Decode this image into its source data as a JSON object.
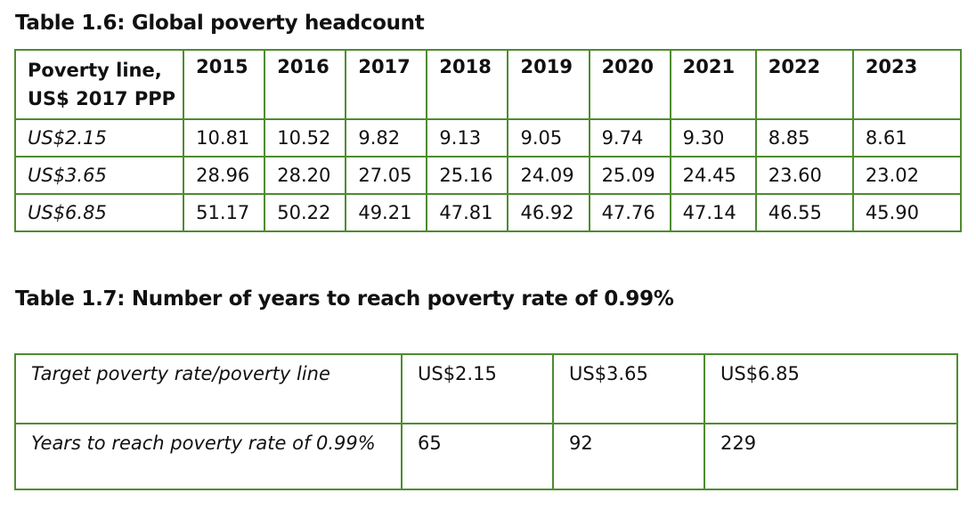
{
  "table1": {
    "caption": "Table 1.6: Global poverty headcount",
    "header_label": "Poverty line, US$ 2017 PPP",
    "years": [
      "2015",
      "2016",
      "2017",
      "2018",
      "2019",
      "2020",
      "2021",
      "2022",
      "2023"
    ],
    "rows": [
      {
        "label": "US$2.15",
        "values": [
          "10.81",
          "10.52",
          "9.82",
          "9.13",
          "9.05",
          "9.74",
          "9.30",
          "8.85",
          "8.61"
        ]
      },
      {
        "label": "US$3.65",
        "values": [
          "28.96",
          "28.20",
          "27.05",
          "25.16",
          "24.09",
          "25.09",
          "24.45",
          "23.60",
          "23.02"
        ]
      },
      {
        "label": "US$6.85",
        "values": [
          "51.17",
          "50.22",
          "49.21",
          "47.81",
          "46.92",
          "47.76",
          "47.14",
          "46.55",
          "45.90"
        ]
      }
    ]
  },
  "table2": {
    "caption": "Table 1.7: Number of years to reach poverty rate of 0.99%",
    "row1": {
      "label": "Target poverty rate/poverty line",
      "values": [
        "US$2.15",
        "US$3.65",
        "US$6.85"
      ]
    },
    "row2": {
      "label": "Years to reach poverty rate of 0.99%",
      "values": [
        "65",
        "92",
        "229"
      ]
    }
  }
}
